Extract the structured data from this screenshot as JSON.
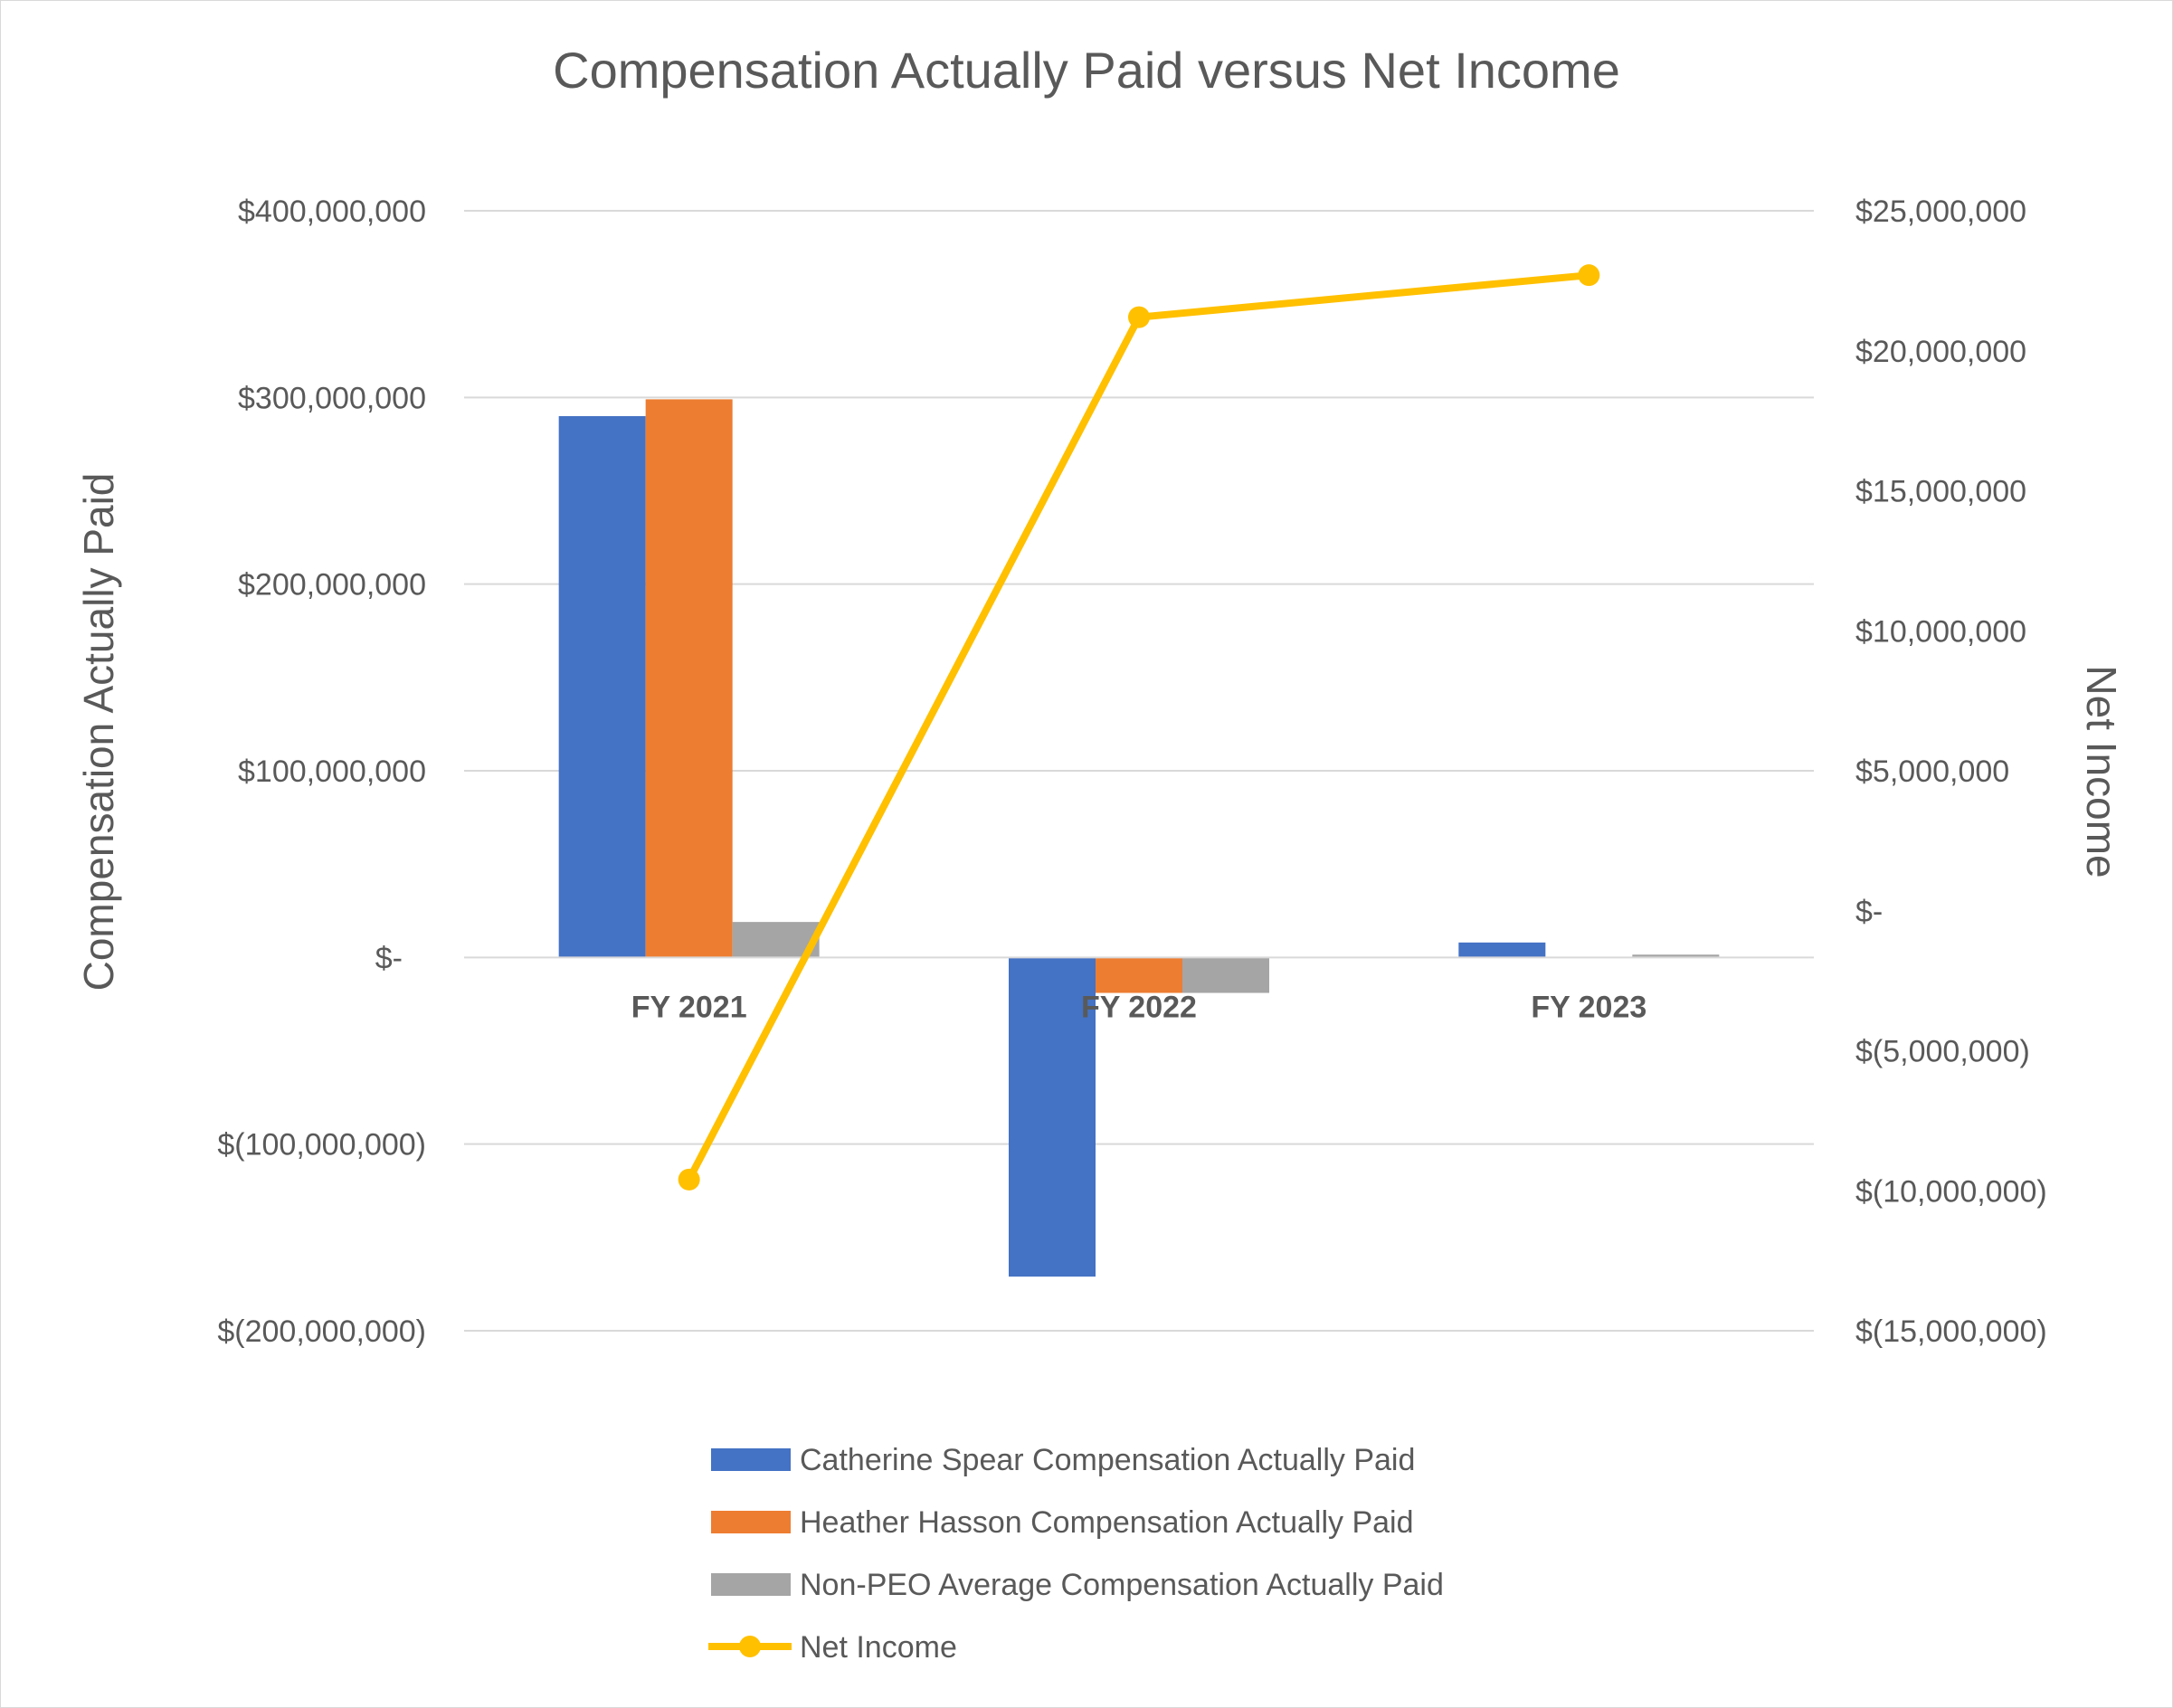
{
  "chart_data": {
    "type": "bar",
    "title": "Compensation Actually Paid versus Net Income",
    "categories": [
      "FY 2021",
      "FY 2022",
      "FY 2023"
    ],
    "ylabel": "Compensation Actually Paid",
    "y2label": "Net Income",
    "ylim": [
      -200000000,
      400000000
    ],
    "y2lim": [
      -15000000,
      25000000
    ],
    "yticks": [
      {
        "value": 400000000,
        "label": "$400,000,000"
      },
      {
        "value": 300000000,
        "label": "$300,000,000"
      },
      {
        "value": 200000000,
        "label": "$200,000,000"
      },
      {
        "value": 100000000,
        "label": "$100,000,000"
      },
      {
        "value": 0,
        "label": "$-"
      },
      {
        "value": -100000000,
        "label": "$(100,000,000)"
      },
      {
        "value": -200000000,
        "label": "$(200,000,000)"
      }
    ],
    "y2ticks": [
      {
        "value": 25000000,
        "label": "$25,000,000"
      },
      {
        "value": 20000000,
        "label": "$20,000,000"
      },
      {
        "value": 15000000,
        "label": "$15,000,000"
      },
      {
        "value": 10000000,
        "label": "$10,000,000"
      },
      {
        "value": 5000000,
        "label": "$5,000,000"
      },
      {
        "value": 0,
        "label": "$-"
      },
      {
        "value": -5000000,
        "label": "$(5,000,000)"
      },
      {
        "value": -10000000,
        "label": "$(10,000,000)"
      },
      {
        "value": -15000000,
        "label": "$(15,000,000)"
      }
    ],
    "grid": true,
    "legend_position": "bottom",
    "series": [
      {
        "name": "Catherine Spear Compensation Actually Paid",
        "type": "bar",
        "axis": "left",
        "color": "#4472c4",
        "values": [
          290000000,
          -171000000,
          8000000
        ]
      },
      {
        "name": "Heather Hasson Compensation Actually Paid",
        "type": "bar",
        "axis": "left",
        "color": "#ed7d31",
        "values": [
          299000000,
          -19000000,
          0
        ]
      },
      {
        "name": "Non-PEO Average Compensation Actually Paid",
        "type": "bar",
        "axis": "left",
        "color": "#a5a5a5",
        "values": [
          19000000,
          -19000000,
          1500000
        ]
      },
      {
        "name": "Net Income",
        "type": "line",
        "axis": "right",
        "color": "#ffc000",
        "values": [
          -9600000,
          21200000,
          22700000
        ]
      }
    ]
  }
}
